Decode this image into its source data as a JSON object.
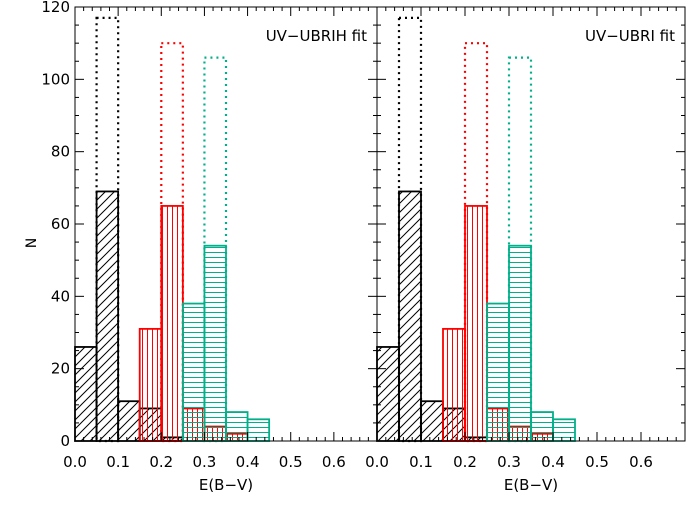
{
  "chart_data": [
    {
      "type": "bar",
      "panel_label": "UV−UBRIH  fit",
      "ylabel": "N",
      "xlabel": "E(B−V)",
      "xlim": [
        0.0,
        0.7
      ],
      "ylim": [
        0,
        120
      ],
      "x_ticks": [
        "0.0",
        "0.1",
        "0.2",
        "0.3",
        "0.4",
        "0.5",
        "0.6"
      ],
      "y_ticks": [
        "0",
        "20",
        "40",
        "60",
        "80",
        "100",
        "120"
      ],
      "bin_width": 0.05,
      "series": [
        {
          "color": "#000000",
          "style": "dotted",
          "fill": "none",
          "bins": [
            {
              "x": 0.05,
              "y": 117
            }
          ]
        },
        {
          "color": "#ff0000",
          "style": "dotted",
          "fill": "none",
          "bins": [
            {
              "x": 0.2,
              "y": 110
            }
          ]
        },
        {
          "color": "#00b08a",
          "style": "dotted",
          "fill": "none",
          "bins": [
            {
              "x": 0.3,
              "y": 106
            }
          ]
        },
        {
          "color": "#000000",
          "style": "solid",
          "fill": "diagonal",
          "bins": [
            {
              "x": 0.0,
              "y": 26
            },
            {
              "x": 0.05,
              "y": 69
            },
            {
              "x": 0.1,
              "y": 11
            },
            {
              "x": 0.15,
              "y": 9
            },
            {
              "x": 0.2,
              "y": 1
            },
            {
              "x": 0.25,
              "y": 0
            }
          ]
        },
        {
          "color": "#ff0000",
          "style": "solid",
          "fill": "vertical",
          "bins": [
            {
              "x": 0.15,
              "y": 31
            },
            {
              "x": 0.2,
              "y": 65
            },
            {
              "x": 0.25,
              "y": 9
            },
            {
              "x": 0.3,
              "y": 4
            },
            {
              "x": 0.35,
              "y": 2
            }
          ]
        },
        {
          "color": "#00b08a",
          "style": "solid",
          "fill": "horizontal",
          "bins": [
            {
              "x": 0.25,
              "y": 38
            },
            {
              "x": 0.3,
              "y": 54
            },
            {
              "x": 0.35,
              "y": 8
            },
            {
              "x": 0.4,
              "y": 6
            }
          ]
        }
      ]
    },
    {
      "type": "bar",
      "panel_label": "UV−UBRI  fit",
      "xlabel": "E(B−V)",
      "xlim": [
        0.0,
        0.7
      ],
      "ylim": [
        0,
        120
      ],
      "x_ticks": [
        "0.0",
        "0.1",
        "0.2",
        "0.3",
        "0.4",
        "0.5",
        "0.6"
      ],
      "bin_width": 0.05,
      "series": [
        {
          "color": "#000000",
          "style": "dotted",
          "fill": "none",
          "bins": [
            {
              "x": 0.05,
              "y": 117
            }
          ]
        },
        {
          "color": "#ff0000",
          "style": "dotted",
          "fill": "none",
          "bins": [
            {
              "x": 0.2,
              "y": 110
            }
          ]
        },
        {
          "color": "#00b08a",
          "style": "dotted",
          "fill": "none",
          "bins": [
            {
              "x": 0.3,
              "y": 106
            }
          ]
        },
        {
          "color": "#000000",
          "style": "solid",
          "fill": "diagonal",
          "bins": [
            {
              "x": 0.0,
              "y": 26
            },
            {
              "x": 0.05,
              "y": 69
            },
            {
              "x": 0.1,
              "y": 11
            },
            {
              "x": 0.15,
              "y": 9
            },
            {
              "x": 0.2,
              "y": 1
            },
            {
              "x": 0.25,
              "y": 0
            }
          ]
        },
        {
          "color": "#ff0000",
          "style": "solid",
          "fill": "vertical",
          "bins": [
            {
              "x": 0.15,
              "y": 31
            },
            {
              "x": 0.2,
              "y": 65
            },
            {
              "x": 0.25,
              "y": 9
            },
            {
              "x": 0.3,
              "y": 4
            },
            {
              "x": 0.35,
              "y": 2
            }
          ]
        },
        {
          "color": "#00b08a",
          "style": "solid",
          "fill": "horizontal",
          "bins": [
            {
              "x": 0.25,
              "y": 38
            },
            {
              "x": 0.3,
              "y": 54
            },
            {
              "x": 0.35,
              "y": 8
            },
            {
              "x": 0.4,
              "y": 6
            }
          ]
        }
      ]
    }
  ]
}
